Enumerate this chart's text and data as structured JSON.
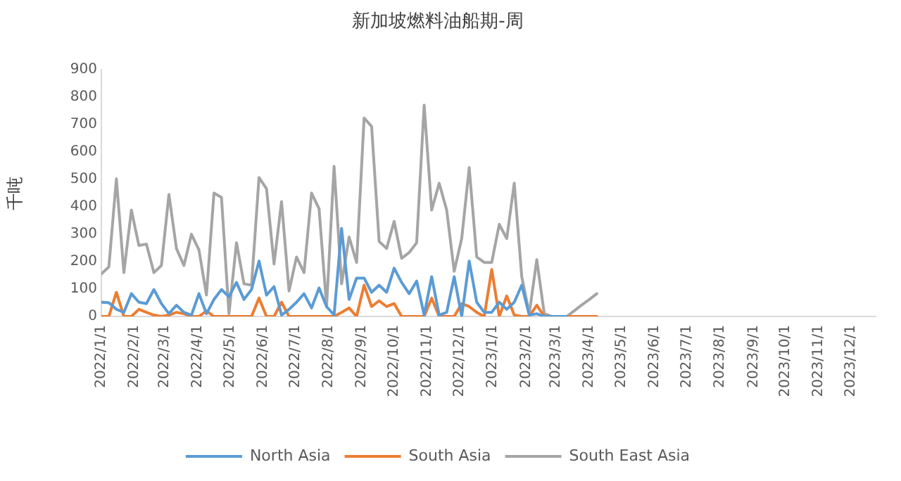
{
  "chart_data": {
    "type": "line",
    "title": "新加坡燃料油船期-周",
    "ylabel": "千吨",
    "x": [
      "2022-01-01",
      "2022-01-08",
      "2022-01-15",
      "2022-01-22",
      "2022-01-29",
      "2022-02-05",
      "2022-02-12",
      "2022-02-19",
      "2022-02-26",
      "2022-03-05",
      "2022-03-12",
      "2022-03-19",
      "2022-03-26",
      "2022-04-02",
      "2022-04-09",
      "2022-04-16",
      "2022-04-23",
      "2022-04-30",
      "2022-05-07",
      "2022-05-14",
      "2022-05-21",
      "2022-05-28",
      "2022-06-04",
      "2022-06-11",
      "2022-06-18",
      "2022-06-25",
      "2022-07-02",
      "2022-07-09",
      "2022-07-16",
      "2022-07-23",
      "2022-07-30",
      "2022-08-06",
      "2022-08-13",
      "2022-08-20",
      "2022-08-27",
      "2022-09-03",
      "2022-09-10",
      "2022-09-17",
      "2022-09-24",
      "2022-10-01",
      "2022-10-08",
      "2022-10-15",
      "2022-10-22",
      "2022-10-29",
      "2022-11-05",
      "2022-11-12",
      "2022-11-19",
      "2022-11-26",
      "2022-12-03",
      "2022-12-10",
      "2022-12-17",
      "2022-12-24",
      "2022-12-31",
      "2023-01-07",
      "2023-01-14",
      "2023-01-21",
      "2023-01-28",
      "2023-02-04",
      "2023-02-11",
      "2023-02-18",
      "2023-02-25",
      "2023-03-04",
      "2023-03-11",
      "2023-03-18",
      "2023-03-25",
      "2023-04-01",
      "2023-04-08"
    ],
    "series": [
      {
        "name": "North Asia",
        "color": "#5b9bd5",
        "values": [
          52,
          50,
          26,
          15,
          83,
          52,
          47,
          98,
          47,
          10,
          41,
          15,
          5,
          83,
          10,
          62,
          98,
          72,
          124,
          62,
          98,
          202,
          78,
          109,
          5,
          26,
          52,
          83,
          31,
          104,
          36,
          5,
          321,
          62,
          140,
          140,
          88,
          114,
          88,
          176,
          124,
          83,
          129,
          5,
          145,
          5,
          15,
          145,
          0,
          202,
          52,
          15,
          15,
          52,
          26,
          52,
          114,
          5,
          10,
          0,
          0,
          0,
          0,
          null,
          null,
          null,
          null
        ]
      },
      {
        "name": "South Asia",
        "color": "#ed7d31",
        "values": [
          0,
          0,
          88,
          0,
          0,
          26,
          15,
          5,
          0,
          5,
          15,
          10,
          0,
          0,
          20,
          0,
          0,
          0,
          0,
          0,
          0,
          67,
          0,
          0,
          52,
          0,
          0,
          0,
          0,
          0,
          0,
          0,
          15,
          31,
          0,
          114,
          36,
          57,
          36,
          47,
          0,
          0,
          0,
          0,
          67,
          0,
          0,
          0,
          47,
          36,
          15,
          0,
          171,
          0,
          75,
          5,
          0,
          0,
          41,
          0,
          0,
          0,
          0,
          0,
          0,
          0,
          0
        ]
      },
      {
        "name": "South East Asia",
        "color": "#a5a5a5",
        "values": [
          155,
          181,
          502,
          160,
          388,
          259,
          264,
          160,
          186,
          445,
          248,
          186,
          300,
          243,
          78,
          450,
          434,
          10,
          269,
          119,
          114,
          507,
          466,
          191,
          419,
          93,
          217,
          160,
          450,
          393,
          36,
          548,
          119,
          290,
          197,
          724,
          693,
          274,
          248,
          347,
          212,
          233,
          269,
          771,
          388,
          486,
          388,
          165,
          284,
          543,
          217,
          197,
          197,
          336,
          284,
          486,
          145,
          10,
          207,
          10,
          0,
          0,
          0,
          21,
          42,
          62,
          83
        ]
      }
    ],
    "xlim": [
      "2022-01-01",
      "2023-12-24"
    ],
    "xticks": [
      {
        "value": "2022-01-01",
        "label": "2022/1/1"
      },
      {
        "value": "2022-02-01",
        "label": "2022/2/1"
      },
      {
        "value": "2022-03-01",
        "label": "2022/3/1"
      },
      {
        "value": "2022-04-01",
        "label": "2022/4/1"
      },
      {
        "value": "2022-05-01",
        "label": "2022/5/1"
      },
      {
        "value": "2022-06-01",
        "label": "2022/6/1"
      },
      {
        "value": "2022-07-01",
        "label": "2022/7/1"
      },
      {
        "value": "2022-08-01",
        "label": "2022/8/1"
      },
      {
        "value": "2022-09-01",
        "label": "2022/9/1"
      },
      {
        "value": "2022-10-01",
        "label": "2022/10/1"
      },
      {
        "value": "2022-11-01",
        "label": "2022/11/1"
      },
      {
        "value": "2022-12-01",
        "label": "2022/12/1"
      },
      {
        "value": "2023-01-01",
        "label": "2023/1/1"
      },
      {
        "value": "2023-02-01",
        "label": "2023/2/1"
      },
      {
        "value": "2023-03-01",
        "label": "2023/3/1"
      },
      {
        "value": "2023-04-01",
        "label": "2023/4/1"
      },
      {
        "value": "2023-05-01",
        "label": "2023/5/1"
      },
      {
        "value": "2023-06-01",
        "label": "2023/6/1"
      },
      {
        "value": "2023-07-01",
        "label": "2023/7/1"
      },
      {
        "value": "2023-08-01",
        "label": "2023/8/1"
      },
      {
        "value": "2023-09-01",
        "label": "2023/9/1"
      },
      {
        "value": "2023-10-01",
        "label": "2023/10/1"
      },
      {
        "value": "2023-11-01",
        "label": "2023/11/1"
      },
      {
        "value": "2023-12-01",
        "label": "2023/12/1"
      }
    ],
    "ylim": [
      0,
      900
    ],
    "yticks": [
      0,
      100,
      200,
      300,
      400,
      500,
      600,
      700,
      800,
      900
    ],
    "grid": false,
    "legend": "bottom",
    "marker": "none",
    "line_style": "solid"
  }
}
